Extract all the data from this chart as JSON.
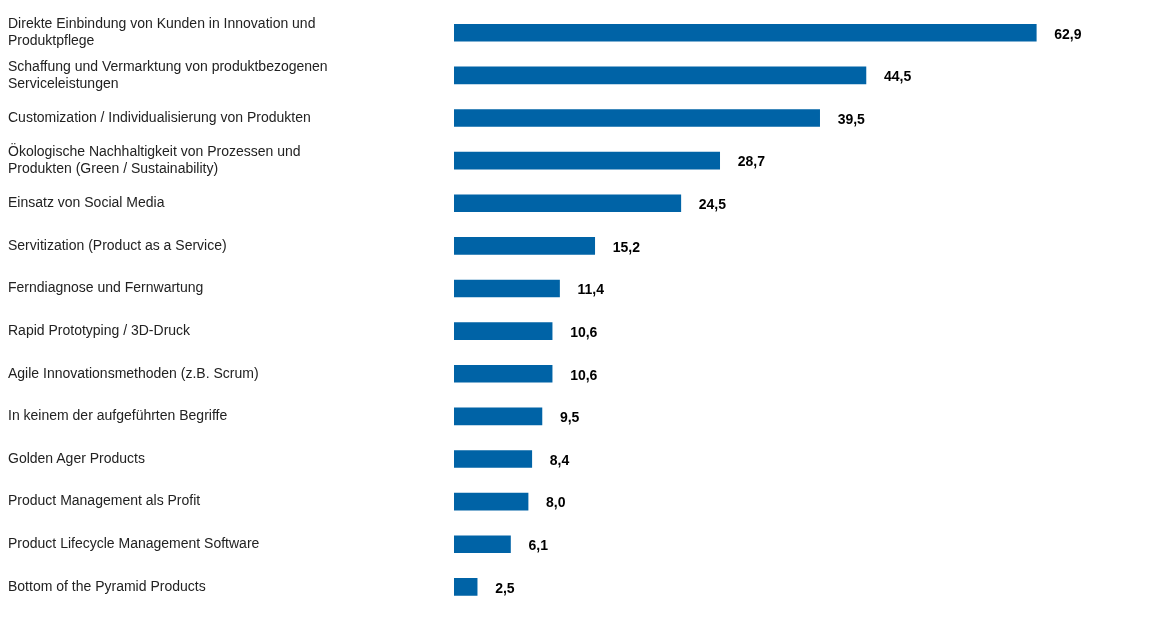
{
  "chart_data": {
    "type": "bar",
    "orientation": "horizontal",
    "categories": [
      "Direkte Einbindung von Kunden in Innovation und Produktpflege",
      "Schaffung und Vermarktung von produktbezogenen Serviceleistungen",
      "Customization / Individualisierung von Produkten",
      "Ökologische Nachhaltigkeit von Prozessen und Produkten (Green / Sustainability)",
      "Einsatz von Social Media",
      "Servitization (Product as a Service)",
      "Ferndiagnose und Fernwartung",
      "Rapid Prototyping / 3D-Druck",
      "Agile Innovationsmethoden (z.B. Scrum)",
      "In keinem der aufgeführten Begriffe",
      "Golden Ager Products",
      "Product Management als Profit",
      "Product Lifecycle Management Software",
      "Bottom of the Pyramid Products"
    ],
    "values": [
      62.9,
      44.5,
      39.5,
      28.7,
      24.5,
      15.2,
      11.4,
      10.6,
      10.6,
      9.5,
      8.4,
      8.0,
      6.1,
      2.5
    ],
    "value_labels": [
      "62,9",
      "44,5",
      "39,5",
      "28,7",
      "24,5",
      "15,2",
      "11,4",
      "10,6",
      "10,6",
      "9,5",
      "8,4",
      "8,0",
      "6,1",
      "2,5"
    ],
    "color": "#0063a6",
    "legend": false
  }
}
